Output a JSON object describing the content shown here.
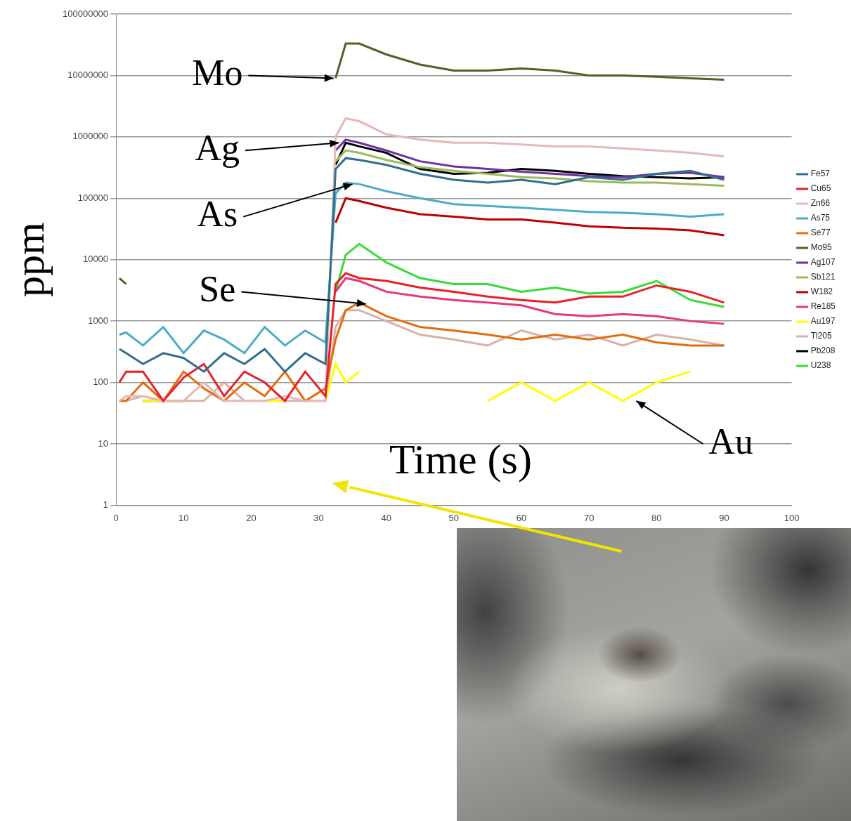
{
  "chart_data": {
    "type": "line",
    "x_label": "Time (s)",
    "y_label": "ppm",
    "annotations": [
      "Mo",
      "Ag",
      "As",
      "Se",
      "Au"
    ],
    "log": "y",
    "grid": "y",
    "legend": "right",
    "xlim": [
      0,
      100
    ],
    "xticks": [
      0,
      10,
      20,
      30,
      40,
      50,
      60,
      70,
      80,
      90,
      100
    ],
    "ylim": [
      1,
      100000000
    ],
    "yticks": [
      1,
      10,
      100,
      1000,
      10000,
      100000,
      1000000,
      10000000,
      100000000
    ],
    "x": [
      0.5,
      1.5,
      4,
      7,
      10,
      13,
      16,
      19,
      22,
      25,
      28,
      31,
      32.5,
      34,
      36,
      40,
      45,
      50,
      55,
      60,
      65,
      70,
      75,
      80,
      85,
      90
    ],
    "series": [
      {
        "name": "Fe57",
        "color": "#31708a",
        "values": [
          350,
          300,
          200,
          300,
          250,
          150,
          300,
          200,
          350,
          150,
          300,
          200,
          300000,
          450000,
          420000,
          350000,
          250000,
          200000,
          180000,
          200000,
          170000,
          220000,
          200000,
          250000,
          280000,
          200000
        ]
      },
      {
        "name": "Cu65",
        "color": "#e8202a",
        "values": [
          100,
          150,
          150,
          50,
          120,
          200,
          60,
          150,
          100,
          50,
          150,
          60,
          4000,
          6000,
          5000,
          4500,
          3500,
          3000,
          2500,
          2200,
          2000,
          2500,
          2500,
          3800,
          3000,
          2000
        ]
      },
      {
        "name": "Zn66",
        "color": "#e6b8b7",
        "values": [
          50,
          60,
          60,
          50,
          50,
          100,
          50,
          50,
          50,
          60,
          50,
          50,
          1000000,
          2000000,
          1800000,
          1100000,
          900000,
          800000,
          800000,
          750000,
          700000,
          700000,
          650000,
          600000,
          550000,
          480000
        ]
      },
      {
        "name": "As75",
        "color": "#4bacc6",
        "values": [
          600,
          650,
          400,
          800,
          300,
          700,
          500,
          300,
          800,
          400,
          700,
          450,
          120000,
          180000,
          170000,
          130000,
          100000,
          80000,
          75000,
          70000,
          65000,
          60000,
          58000,
          55000,
          50000,
          55000
        ]
      },
      {
        "name": "Se77",
        "color": "#e46c0a",
        "values": [
          50,
          50,
          100,
          50,
          150,
          80,
          50,
          100,
          60,
          150,
          50,
          80,
          500,
          1500,
          2000,
          1200,
          800,
          700,
          600,
          500,
          600,
          500,
          600,
          450,
          400,
          400
        ]
      },
      {
        "name": "Mo95",
        "color": "#4f6228",
        "values": [
          5000,
          4000,
          null,
          null,
          null,
          null,
          null,
          null,
          null,
          null,
          null,
          null,
          9000000,
          33000000,
          33000000,
          22000000,
          15000000,
          12000000,
          12000000,
          13000000,
          12000000,
          10000000,
          10000000,
          9500000,
          9000000,
          8500000
        ]
      },
      {
        "name": "Ag107",
        "color": "#7030a0",
        "values": [
          null,
          null,
          null,
          null,
          null,
          null,
          null,
          null,
          null,
          null,
          null,
          null,
          600000,
          900000,
          800000,
          600000,
          400000,
          330000,
          300000,
          270000,
          250000,
          230000,
          220000,
          250000,
          260000,
          220000
        ]
      },
      {
        "name": "Sb121",
        "color": "#9bbb59",
        "values": [
          null,
          null,
          null,
          null,
          null,
          null,
          null,
          null,
          null,
          null,
          null,
          null,
          400000,
          600000,
          550000,
          420000,
          320000,
          280000,
          250000,
          220000,
          210000,
          190000,
          180000,
          180000,
          170000,
          160000
        ]
      },
      {
        "name": "W182",
        "color": "#c00000",
        "values": [
          null,
          null,
          null,
          null,
          null,
          null,
          null,
          null,
          null,
          null,
          null,
          null,
          40000,
          100000,
          90000,
          70000,
          55000,
          50000,
          45000,
          45000,
          40000,
          35000,
          33000,
          32000,
          30000,
          25000
        ]
      },
      {
        "name": "Re185",
        "color": "#e8367a",
        "values": [
          null,
          null,
          null,
          null,
          null,
          null,
          null,
          null,
          null,
          null,
          null,
          null,
          3000,
          5000,
          4500,
          3000,
          2500,
          2200,
          2000,
          1800,
          1300,
          1200,
          1300,
          1200,
          1000,
          900
        ]
      },
      {
        "name": "Au197",
        "color": "#ffff00",
        "values": [
          null,
          null,
          50,
          50,
          50,
          null,
          50,
          null,
          50,
          50,
          null,
          50,
          200,
          100,
          150,
          null,
          null,
          null,
          50,
          100,
          50,
          100,
          50,
          100,
          150,
          null
        ]
      },
      {
        "name": "Tl205",
        "color": "#d9b0ac",
        "values": [
          50,
          50,
          60,
          50,
          50,
          50,
          100,
          50,
          50,
          50,
          50,
          50,
          800,
          1500,
          1500,
          1000,
          600,
          500,
          400,
          700,
          500,
          600,
          400,
          600,
          500,
          400
        ]
      },
      {
        "name": "Pb208",
        "color": "#000000",
        "values": [
          null,
          null,
          50,
          50,
          50,
          null,
          null,
          null,
          null,
          null,
          null,
          null,
          350000,
          800000,
          700000,
          550000,
          300000,
          250000,
          260000,
          300000,
          280000,
          250000,
          230000,
          220000,
          210000,
          220000
        ]
      },
      {
        "name": "U238",
        "color": "#33dd33",
        "values": [
          null,
          null,
          null,
          null,
          null,
          null,
          null,
          null,
          null,
          null,
          null,
          null,
          3000,
          12000,
          18000,
          9000,
          5000,
          4000,
          4000,
          3000,
          3500,
          2800,
          3000,
          4500,
          2200,
          1700
        ]
      }
    ]
  }
}
